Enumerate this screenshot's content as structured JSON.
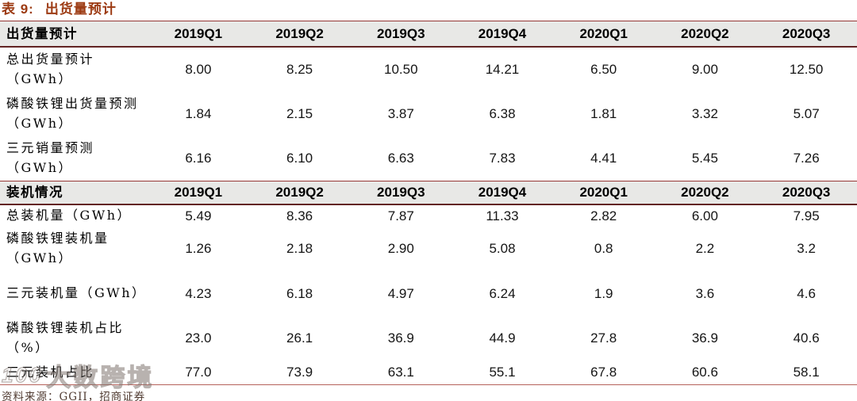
{
  "caption": {
    "prefix": "表 9:",
    "text": "出货量预计"
  },
  "columns": [
    "2019Q1",
    "2019Q2",
    "2019Q3",
    "2019Q4",
    "2020Q1",
    "2020Q2",
    "2020Q3"
  ],
  "sections": [
    {
      "header": "出货量预计",
      "rows": [
        {
          "label": "总出货量预计（GWh）",
          "values": [
            "8.00",
            "8.25",
            "10.50",
            "14.21",
            "6.50",
            "9.00",
            "12.50"
          ]
        },
        {
          "label": "磷酸铁锂出货量预测（GWh）",
          "values": [
            "1.84",
            "2.15",
            "3.87",
            "6.38",
            "1.81",
            "3.32",
            "5.07"
          ]
        },
        {
          "label": "三元销量预测（GWh）",
          "values": [
            "6.16",
            "6.10",
            "6.63",
            "7.83",
            "4.41",
            "5.45",
            "7.26"
          ]
        }
      ]
    },
    {
      "header": "装机情况",
      "rows": [
        {
          "label": "总装机量（GWh）",
          "values": [
            "5.49",
            "8.36",
            "7.87",
            "11.33",
            "2.82",
            "6.00",
            "7.95"
          ]
        },
        {
          "label": "磷酸铁锂装机量（GWh）",
          "values": [
            "1.26",
            "2.18",
            "2.90",
            "5.08",
            "0.8",
            "2.2",
            "3.2"
          ]
        },
        {
          "label": "三元装机量（GWh）",
          "values": [
            "4.23",
            "6.18",
            "4.97",
            "6.24",
            "1.9",
            "3.6",
            "4.6"
          ]
        },
        {
          "label": "磷酸铁锂装机占比（%）",
          "values": [
            "23.0",
            "26.1",
            "36.9",
            "44.9",
            "27.8",
            "36.9",
            "40.6"
          ]
        },
        {
          "label": "三元装机占比",
          "values": [
            "77.0",
            "73.9",
            "63.1",
            "55.1",
            "67.8",
            "60.6",
            "58.1"
          ]
        }
      ]
    }
  ],
  "footer": {
    "source": "资料来源：GGII，招商证券"
  },
  "watermark": {
    "logo": "100",
    "text": "大数跨境"
  },
  "colors": {
    "accent_title": "#9c3a12",
    "header_background": "#e8e8e6",
    "border_top": "#953735",
    "border_header_bottom": "#622423",
    "border_table_bottom": "#b5625b"
  }
}
